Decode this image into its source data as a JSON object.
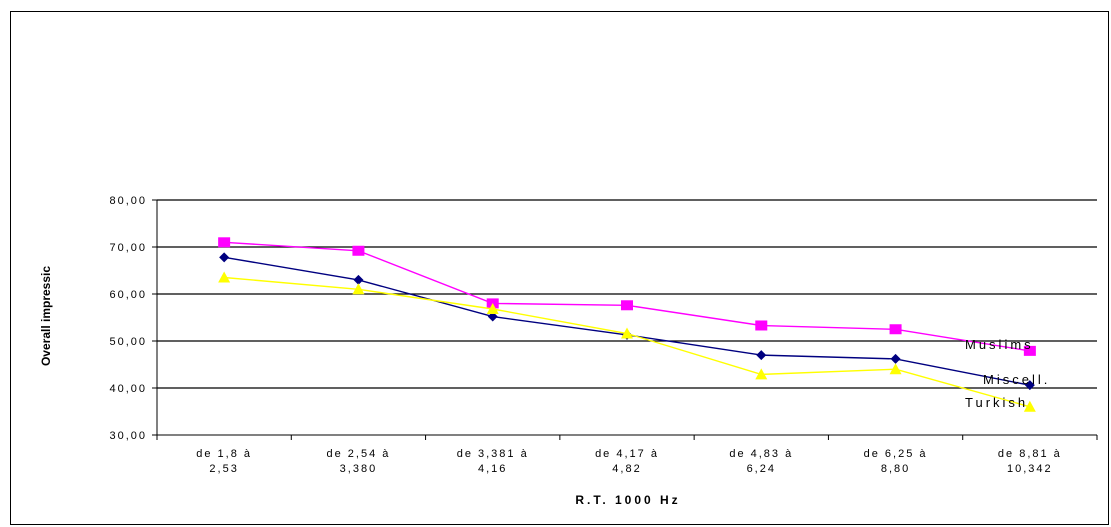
{
  "chart_data": {
    "type": "line",
    "xlabel": "R.T. 1000 Hz",
    "ylabel": "Overall impressic",
    "ylim": [
      30,
      80
    ],
    "yticks": [
      "30,00",
      "40,00",
      "50,00",
      "60,00",
      "70,00",
      "80,00"
    ],
    "grid": "horizontal",
    "categories": [
      [
        "de 1,8 à",
        "2,53"
      ],
      [
        "de 2,54 à",
        "3,380"
      ],
      [
        "de 3,381 à",
        "4,16"
      ],
      [
        "de 4,17 à",
        "4,82"
      ],
      [
        "de 4,83 à",
        "6,24"
      ],
      [
        "de 6,25 à",
        "8,80"
      ],
      [
        "de 8,81 à",
        "10,342"
      ]
    ],
    "series": [
      {
        "name": "Muslims",
        "color": "#ff00ff",
        "marker": "square",
        "values": [
          71.0,
          69.2,
          58.0,
          57.6,
          53.3,
          52.5,
          47.9
        ]
      },
      {
        "name": "Miscell.",
        "color": "#000080",
        "marker": "diamond",
        "values": [
          67.8,
          63.0,
          55.2,
          51.3,
          47.0,
          46.2,
          40.6
        ]
      },
      {
        "name": "Turkish",
        "color": "#ffff00",
        "marker": "triangle",
        "values": [
          63.5,
          61.0,
          56.8,
          51.6,
          42.9,
          44.0,
          36.0
        ]
      }
    ]
  }
}
